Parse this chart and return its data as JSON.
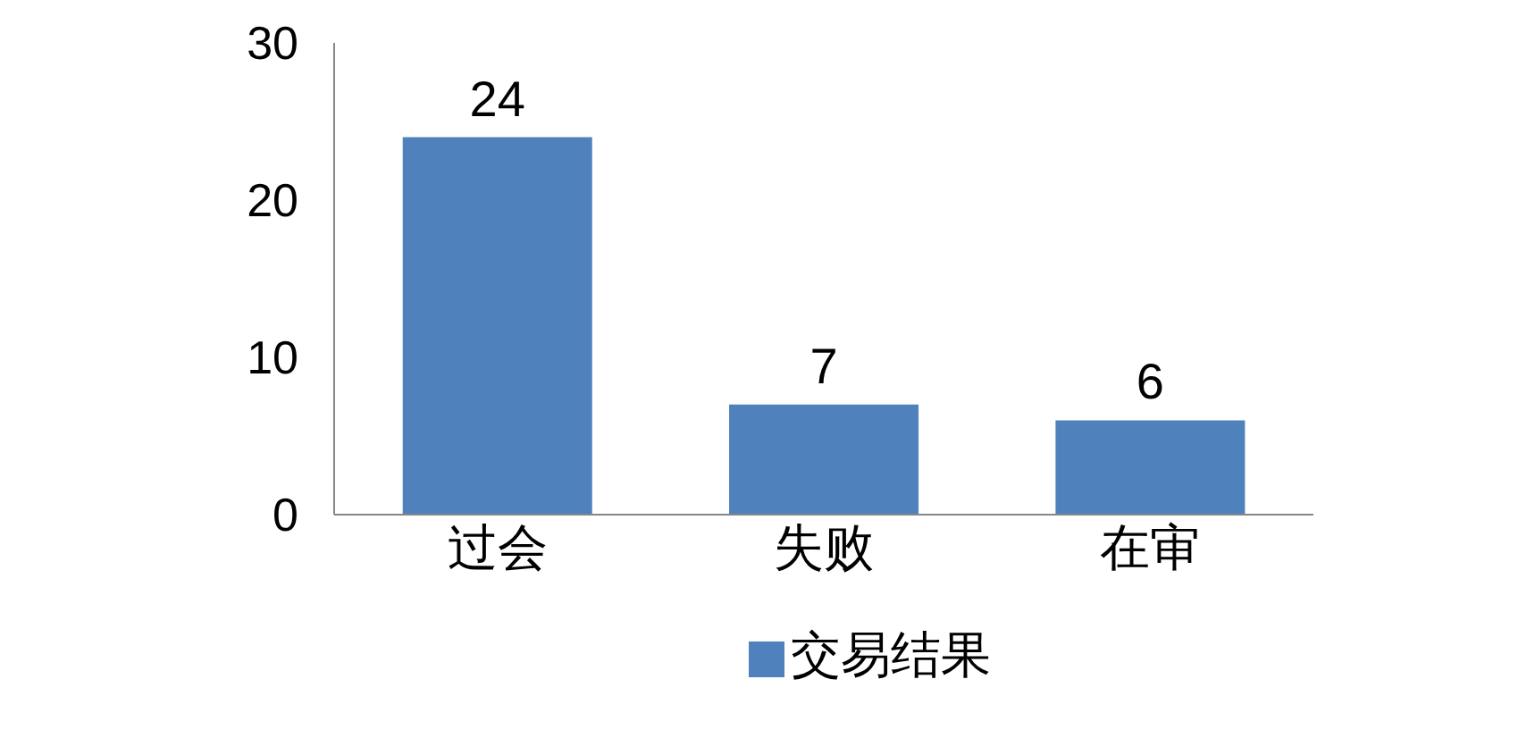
{
  "chart_data": {
    "type": "bar",
    "categories": [
      "过会",
      "失败",
      "在审"
    ],
    "series": [
      {
        "name": "交易结果",
        "color": "#4f81bd",
        "values": [
          24,
          7,
          6
        ]
      }
    ],
    "ylim": [
      0,
      30
    ],
    "yticks": [
      0,
      10,
      20,
      30
    ],
    "grid": false,
    "legend": "bottom",
    "data_labels": true
  }
}
